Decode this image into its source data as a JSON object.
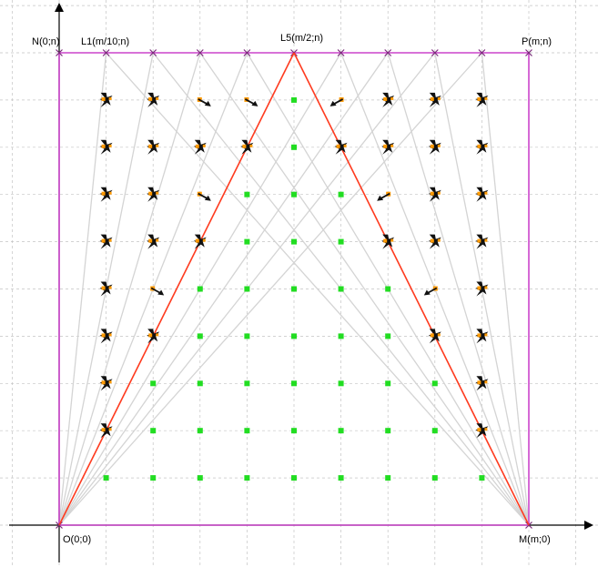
{
  "labels": {
    "origin": "O(0;0)",
    "m_point": "M(m;0)",
    "n_point": "N(0;n)",
    "p_point": "P(m;n)",
    "l1_point": "L1(m/10;n)",
    "l5_point": "L5(m/2;n)"
  },
  "colors": {
    "rectangle": "#cc44cc",
    "triangle": "#ff3b1f",
    "rays": "#d4d4d4",
    "grid": "#c4c4c4",
    "inside_marker": "#22dd22",
    "outside_marker": "#111111",
    "marker_accent": "#ff9900"
  },
  "icons": {
    "inside": "green-square-icon",
    "outside": "bird-icon",
    "crossing": "arrow-icon",
    "endpoint": "x-mark-icon"
  },
  "chart_data": {
    "type": "scatter",
    "m_divisions": 10,
    "n_divisions": 10,
    "triangle": [
      [
        0,
        0
      ],
      [
        5,
        10
      ],
      [
        10,
        0
      ]
    ],
    "rectangle": [
      [
        0,
        0
      ],
      [
        10,
        0
      ],
      [
        10,
        10
      ],
      [
        0,
        10
      ]
    ],
    "ray_sources": [
      [
        0,
        0
      ],
      [
        10,
        0
      ]
    ],
    "ray_targets": [
      [
        1,
        10
      ],
      [
        2,
        10
      ],
      [
        3,
        10
      ],
      [
        4,
        10
      ],
      [
        5,
        10
      ],
      [
        6,
        10
      ],
      [
        7,
        10
      ],
      [
        8,
        10
      ],
      [
        9,
        10
      ]
    ],
    "grid_points": {
      "x": [
        1,
        2,
        3,
        4,
        5,
        6,
        7,
        8,
        9
      ],
      "y": [
        1,
        2,
        3,
        4,
        5,
        6,
        7,
        8,
        9
      ]
    },
    "arrow_points": [
      [
        3,
        9
      ],
      [
        4,
        9
      ],
      [
        6,
        9
      ],
      [
        3,
        7
      ],
      [
        7,
        7
      ],
      [
        2,
        5
      ],
      [
        8,
        5
      ]
    ],
    "grid": true
  }
}
